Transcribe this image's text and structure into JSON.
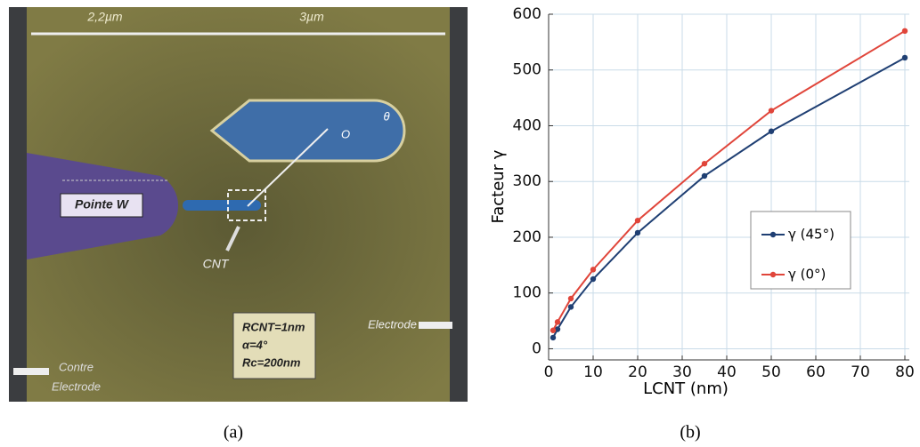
{
  "diagram": {
    "dimensions": [
      "2,2µm",
      "3µm"
    ],
    "tip_label": "Pointe W",
    "cnt_label": "CNT",
    "center_label": "O",
    "angle_label": "θ",
    "parameters": [
      "RCNT=1nm",
      "α=4°",
      "Rc=200nm"
    ],
    "electrode_label": "Electrode",
    "counter_electrode_label": [
      "Contre",
      "Electrode"
    ]
  },
  "captions": [
    "(a)",
    "(b)"
  ],
  "chart_data": {
    "type": "line",
    "x_label": "LCNT (nm)",
    "y_label": "Facteur γ",
    "x": [
      1,
      2,
      5,
      10,
      20,
      35,
      50,
      80
    ],
    "series": [
      {
        "name": "γ (45°)",
        "color": "#1f3f73",
        "values": [
          20,
          35,
          75,
          125,
          208,
          310,
          390,
          522
        ]
      },
      {
        "name": "γ (0°)",
        "color": "#e0453a",
        "values": [
          33,
          48,
          90,
          142,
          230,
          332,
          427,
          570
        ]
      }
    ],
    "xlim": [
      0,
      81
    ],
    "ylim": [
      -20,
      600
    ],
    "xticks": [
      0,
      10,
      20,
      30,
      40,
      50,
      60,
      70,
      80
    ],
    "yticks": [
      0,
      100,
      200,
      300,
      400,
      500,
      600
    ],
    "grid": true,
    "legend": "right"
  }
}
